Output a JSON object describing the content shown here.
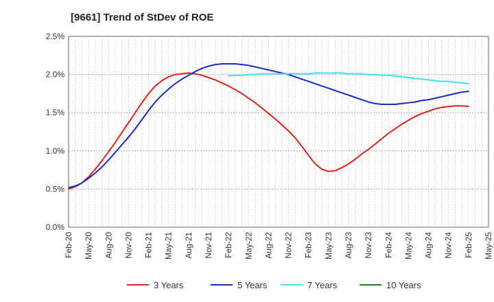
{
  "chart_data": {
    "type": "line",
    "title": "[9661]  Trend of StDev of ROE",
    "y_ticks": [
      "0.0%",
      "0.5%",
      "1.0%",
      "1.5%",
      "2.0%",
      "2.5%"
    ],
    "ylim": [
      0,
      2.5
    ],
    "x_ticks": [
      "Feb-20",
      "May-20",
      "Aug-20",
      "Nov-20",
      "Feb-21",
      "May-21",
      "Aug-21",
      "Nov-21",
      "Feb-22",
      "May-22",
      "Aug-22",
      "Nov-22",
      "Feb-23",
      "May-23",
      "Aug-23",
      "Nov-23",
      "Feb-24",
      "May-24",
      "Aug-24",
      "Nov-24",
      "Feb-25",
      "May-25"
    ],
    "xlim": [
      "Feb-20",
      "May-25"
    ],
    "grid": true,
    "legend_placement": "bottom",
    "series": [
      {
        "name": "3 Years",
        "color": "#e0201e",
        "x": [
          "Feb-20",
          "Mar-20",
          "Apr-20",
          "May-20",
          "Jun-20",
          "Jul-20",
          "Aug-20",
          "Sep-20",
          "Oct-20",
          "Nov-20",
          "Dec-20",
          "Jan-21",
          "Feb-21",
          "Mar-21",
          "Apr-21",
          "May-21",
          "Jun-21",
          "Jul-21",
          "Aug-21",
          "Sep-21",
          "Oct-21",
          "Nov-21",
          "Dec-21",
          "Jan-22",
          "Feb-22",
          "Mar-22",
          "Apr-22",
          "May-22",
          "Jun-22",
          "Jul-22",
          "Aug-22",
          "Sep-22",
          "Oct-22",
          "Nov-22",
          "Dec-22",
          "Jan-23",
          "Feb-23",
          "Mar-23",
          "Apr-23",
          "May-23",
          "Jun-23",
          "Jul-23",
          "Aug-23",
          "Sep-23",
          "Oct-23",
          "Nov-23",
          "Dec-23",
          "Jan-24",
          "Feb-24",
          "Mar-24",
          "Apr-24",
          "May-24",
          "Jun-24",
          "Jul-24",
          "Aug-24",
          "Sep-24",
          "Oct-24",
          "Nov-24",
          "Dec-24",
          "Jan-25",
          "Feb-25"
        ],
        "values": [
          0.5,
          0.53,
          0.58,
          0.66,
          0.76,
          0.87,
          0.99,
          1.11,
          1.24,
          1.37,
          1.5,
          1.63,
          1.75,
          1.85,
          1.92,
          1.97,
          2.0,
          2.01,
          2.02,
          2.01,
          1.99,
          1.96,
          1.93,
          1.89,
          1.85,
          1.8,
          1.75,
          1.69,
          1.63,
          1.56,
          1.49,
          1.42,
          1.34,
          1.26,
          1.17,
          1.06,
          0.94,
          0.83,
          0.76,
          0.73,
          0.74,
          0.78,
          0.83,
          0.89,
          0.96,
          1.02,
          1.09,
          1.16,
          1.23,
          1.29,
          1.35,
          1.4,
          1.45,
          1.49,
          1.52,
          1.55,
          1.57,
          1.58,
          1.59,
          1.59,
          1.58
        ]
      },
      {
        "name": "5 Years",
        "color": "#1a28c8",
        "x": [
          "Feb-20",
          "Mar-20",
          "Apr-20",
          "May-20",
          "Jun-20",
          "Jul-20",
          "Aug-20",
          "Sep-20",
          "Oct-20",
          "Nov-20",
          "Dec-20",
          "Jan-21",
          "Feb-21",
          "Mar-21",
          "Apr-21",
          "May-21",
          "Jun-21",
          "Jul-21",
          "Aug-21",
          "Sep-21",
          "Oct-21",
          "Nov-21",
          "Dec-21",
          "Jan-22",
          "Feb-22",
          "Mar-22",
          "Apr-22",
          "May-22",
          "Jun-22",
          "Jul-22",
          "Aug-22",
          "Sep-22",
          "Oct-22",
          "Nov-22",
          "Dec-22",
          "Jan-23",
          "Feb-23",
          "Mar-23",
          "Apr-23",
          "May-23",
          "Jun-23",
          "Jul-23",
          "Aug-23",
          "Sep-23",
          "Oct-23",
          "Nov-23",
          "Dec-23",
          "Jan-24",
          "Feb-24",
          "Mar-24",
          "Apr-24",
          "May-24",
          "Jun-24",
          "Jul-24",
          "Aug-24",
          "Sep-24",
          "Oct-24",
          "Nov-24",
          "Dec-24",
          "Jan-25",
          "Feb-25"
        ],
        "values": [
          0.52,
          0.54,
          0.58,
          0.64,
          0.71,
          0.79,
          0.88,
          0.98,
          1.08,
          1.18,
          1.29,
          1.41,
          1.53,
          1.64,
          1.73,
          1.81,
          1.88,
          1.94,
          1.99,
          2.04,
          2.08,
          2.11,
          2.13,
          2.14,
          2.14,
          2.14,
          2.13,
          2.12,
          2.1,
          2.08,
          2.06,
          2.04,
          2.02,
          2.0,
          1.97,
          1.94,
          1.91,
          1.88,
          1.85,
          1.82,
          1.79,
          1.76,
          1.73,
          1.7,
          1.67,
          1.64,
          1.62,
          1.61,
          1.61,
          1.61,
          1.62,
          1.63,
          1.64,
          1.66,
          1.67,
          1.69,
          1.71,
          1.73,
          1.75,
          1.77,
          1.78
        ]
      },
      {
        "name": "7 Years",
        "color": "#33e8ec",
        "x": [
          "Feb-22",
          "Mar-22",
          "Apr-22",
          "May-22",
          "Jun-22",
          "Jul-22",
          "Aug-22",
          "Sep-22",
          "Oct-22",
          "Nov-22",
          "Dec-22",
          "Jan-23",
          "Feb-23",
          "Mar-23",
          "Apr-23",
          "May-23",
          "Jun-23",
          "Jul-23",
          "Aug-23",
          "Sep-23",
          "Oct-23",
          "Nov-23",
          "Dec-23",
          "Jan-24",
          "Feb-24",
          "Mar-24",
          "Apr-24",
          "May-24",
          "Jun-24",
          "Jul-24",
          "Aug-24",
          "Sep-24",
          "Oct-24",
          "Nov-24",
          "Dec-24",
          "Jan-25",
          "Feb-25"
        ],
        "values": [
          1.98,
          1.99,
          1.99,
          2.0,
          2.0,
          2.01,
          2.01,
          2.01,
          2.01,
          2.01,
          2.01,
          2.01,
          2.01,
          2.02,
          2.02,
          2.02,
          2.02,
          2.02,
          2.01,
          2.01,
          2.01,
          2.0,
          2.0,
          1.99,
          1.99,
          1.98,
          1.97,
          1.96,
          1.95,
          1.94,
          1.93,
          1.92,
          1.91,
          1.91,
          1.9,
          1.89,
          1.88
        ]
      },
      {
        "name": "10 Years",
        "color": "#1e7d1e",
        "x": [],
        "values": []
      }
    ]
  }
}
